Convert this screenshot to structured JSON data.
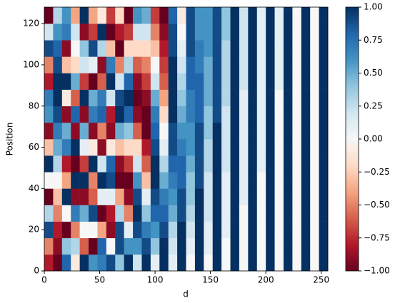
{
  "chart_data": {
    "type": "heatmap",
    "xlabel": "d",
    "ylabel": "Position",
    "xbins": [
      0,
      8,
      16,
      24,
      32,
      40,
      48,
      56,
      64,
      72,
      80,
      88,
      96,
      104,
      112,
      120,
      128,
      136,
      144,
      152,
      160,
      168,
      176,
      184,
      192,
      200,
      208,
      216,
      224,
      232,
      240,
      248,
      256
    ],
    "ybins": [
      0,
      8,
      16,
      24,
      32,
      40,
      48,
      56,
      64,
      72,
      80,
      88,
      96,
      104,
      112,
      120,
      128
    ],
    "values": [
      [
        -0.8,
        -0.5,
        0.9,
        0.3,
        -1,
        0,
        1,
        -0.3,
        -0.9,
        0.6,
        0.7,
        -0.8,
        -0.5,
        0.9,
        0.2,
        -1
      ],
      [
        -1,
        -0.9,
        -0.8,
        -0.5,
        -0.3,
        0,
        0.3,
        0.5,
        0.7,
        0.9,
        1,
        1,
        0.9,
        0.8,
        0.6,
        0.3
      ],
      [
        0.8,
        0.4,
        -1,
        0,
        1,
        -0.4,
        -0.8,
        0.7,
        0.5,
        -0.9,
        -0.1,
        1,
        -0.3,
        -0.9,
        0.7,
        0.6
      ],
      [
        -0.1,
        0.3,
        -0.5,
        0.7,
        -0.9,
        1,
        -1,
        1,
        -0.9,
        0.8,
        -0.6,
        0.5,
        -0.2,
        0,
        0.2,
        -0.4
      ],
      [
        1,
        -0.6,
        0,
        0.5,
        -0.9,
        1,
        -0.7,
        0.1,
        0.5,
        -0.9,
        1,
        -0.7,
        0.2,
        0.4,
        -0.9,
        1
      ],
      [
        0.6,
        -1,
        0,
        0.9,
        -0.6,
        -0.5,
        1,
        -0.1,
        -0.9,
        0.7,
        0.5,
        -1,
        0.1,
        0.9,
        -0.7,
        -0.4
      ],
      [
        0.7,
        0.8,
        -0.4,
        -1,
        0.1,
        1,
        0.2,
        -0.9,
        -0.5,
        0.8,
        0.7,
        -0.6,
        -0.9,
        0.3,
        1,
        -0.1
      ],
      [
        0.9,
        0,
        -0.9,
        -0.8,
        0.1,
        0.9,
        0.8,
        -0.1,
        -0.9,
        -0.8,
        0.2,
        1,
        0.7,
        -0.3,
        -1,
        -0.7
      ],
      [
        0.4,
        0.9,
        0.9,
        0.3,
        -0.4,
        -1,
        -0.9,
        -0.3,
        0.5,
        1,
        0.9,
        0.2,
        -0.5,
        -1,
        -0.8,
        -0.2
      ],
      [
        1,
        0.6,
        0.1,
        -0.5,
        -0.9,
        -1,
        -0.7,
        -0.2,
        0.4,
        0.8,
        1,
        0.8,
        0.3,
        -0.2,
        -0.7,
        -1
      ],
      [
        0.2,
        0.6,
        0.9,
        1,
        0.9,
        0.6,
        0.2,
        -0.2,
        -0.6,
        -0.9,
        -1,
        -0.9,
        -0.6,
        -0.2,
        0.2,
        0.6
      ],
      [
        1,
        0.9,
        0.7,
        0.4,
        0.1,
        -0.3,
        -0.6,
        -0.8,
        -1,
        -1,
        -0.9,
        -0.7,
        -0.5,
        -0.2,
        0.2,
        0.5
      ],
      [
        0.1,
        0.4,
        0.6,
        0.8,
        0.9,
        1,
        1,
        0.9,
        0.8,
        0.7,
        0.5,
        0.2,
        0,
        -0.3,
        -0.5,
        -0.7
      ],
      [
        1,
        1,
        0.9,
        0.8,
        0.7,
        0.5,
        0.3,
        0.1,
        0,
        -0.2,
        -0.4,
        -0.6,
        -0.7,
        -0.8,
        -0.9,
        -1
      ],
      [
        0.1,
        0.2,
        0.3,
        0.5,
        0.6,
        0.7,
        0.8,
        0.9,
        0.9,
        1,
        1,
        1,
        1,
        0.9,
        0.9,
        0.8
      ],
      [
        1,
        1,
        1,
        0.9,
        0.9,
        0.8,
        0.8,
        0.7,
        0.6,
        0.5,
        0.4,
        0.3,
        0.2,
        0.1,
        0,
        -0.1
      ],
      [
        0,
        0.1,
        0.2,
        0.3,
        0.4,
        0.4,
        0.5,
        0.6,
        0.6,
        0.7,
        0.7,
        0.8,
        0.8,
        0.9,
        0.9,
        0.9
      ],
      [
        1,
        1,
        1,
        1,
        1,
        0.9,
        0.9,
        0.9,
        0.9,
        0.8,
        0.8,
        0.8,
        0.7,
        0.7,
        0.6,
        0.6
      ],
      [
        0,
        0.1,
        0.1,
        0.2,
        0.2,
        0.2,
        0.3,
        0.3,
        0.4,
        0.4,
        0.5,
        0.5,
        0.5,
        0.6,
        0.6,
        0.6
      ],
      [
        1,
        1,
        1,
        1,
        1,
        1,
        1,
        1,
        1,
        0.9,
        0.9,
        0.9,
        0.9,
        0.9,
        0.9,
        0.9
      ],
      [
        0,
        0,
        0.1,
        0.1,
        0.1,
        0.1,
        0.2,
        0.2,
        0.2,
        0.2,
        0.3,
        0.3,
        0.3,
        0.3,
        0.4,
        0.4
      ],
      [
        1,
        1,
        1,
        1,
        1,
        1,
        1,
        1,
        1,
        1,
        1,
        1,
        1,
        1,
        1,
        1
      ],
      [
        0,
        0,
        0,
        0,
        0.1,
        0.1,
        0.1,
        0.1,
        0.1,
        0.1,
        0.1,
        0.2,
        0.2,
        0.2,
        0.2,
        0.2
      ],
      [
        1,
        1,
        1,
        1,
        1,
        1,
        1,
        1,
        1,
        1,
        1,
        1,
        1,
        1,
        1,
        1
      ],
      [
        0,
        0,
        0,
        0,
        0,
        0,
        0.1,
        0.1,
        0.1,
        0.1,
        0.1,
        0.1,
        0.1,
        0.1,
        0.1,
        0.1
      ],
      [
        1,
        1,
        1,
        1,
        1,
        1,
        1,
        1,
        1,
        1,
        1,
        1,
        1,
        1,
        1,
        1
      ],
      [
        0,
        0,
        0,
        0,
        0,
        0,
        0,
        0,
        0,
        0,
        0,
        0.1,
        0.1,
        0.1,
        0.1,
        0.1
      ],
      [
        1,
        1,
        1,
        1,
        1,
        1,
        1,
        1,
        1,
        1,
        1,
        1,
        1,
        1,
        1,
        1
      ],
      [
        0,
        0,
        0,
        0,
        0,
        0,
        0,
        0,
        0,
        0,
        0,
        0,
        0,
        0,
        0,
        0
      ],
      [
        1,
        1,
        1,
        1,
        1,
        1,
        1,
        1,
        1,
        1,
        1,
        1,
        1,
        1,
        1,
        1
      ],
      [
        0,
        0,
        0,
        0,
        0,
        0,
        0,
        0,
        0,
        0,
        0,
        0,
        0,
        0,
        0,
        0
      ],
      [
        1,
        1,
        1,
        1,
        1,
        1,
        1,
        1,
        1,
        1,
        1,
        1,
        1,
        1,
        1,
        1
      ]
    ],
    "xlim": [
      0,
      256
    ],
    "ylim": [
      0,
      128
    ],
    "xticks": [
      0,
      50,
      100,
      150,
      200,
      250
    ],
    "yticks": [
      0,
      20,
      40,
      60,
      80,
      100,
      120
    ],
    "clim": [
      -1,
      1
    ],
    "colorbar_ticks": [
      {
        "value": -1,
        "label": "−1.00"
      },
      {
        "value": -0.75,
        "label": "−0.75"
      },
      {
        "value": -0.5,
        "label": "−0.50"
      },
      {
        "value": -0.25,
        "label": "−0.25"
      },
      {
        "value": 0,
        "label": "0.00"
      },
      {
        "value": 0.25,
        "label": "0.25"
      },
      {
        "value": 0.5,
        "label": "0.50"
      },
      {
        "value": 0.75,
        "label": "0.75"
      },
      {
        "value": 1,
        "label": "1.00"
      }
    ],
    "colormap": [
      "#67001f",
      "#b2182b",
      "#d6604d",
      "#f4a582",
      "#fddbc7",
      "#f7f7f7",
      "#d1e5f0",
      "#92c5de",
      "#4393c3",
      "#2166ac",
      "#053061"
    ]
  }
}
